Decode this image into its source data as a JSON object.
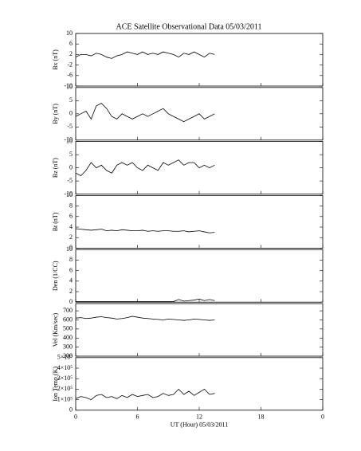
{
  "chart_data": [
    {
      "type": "line",
      "title": "ACE Satellite Observational Data   05/03/2011",
      "ylabel": "Bx (nT)",
      "x": [
        0,
        0.5,
        1,
        1.5,
        2,
        2.5,
        3,
        3.5,
        4,
        4.5,
        5,
        5.5,
        6,
        6.5,
        7,
        7.5,
        8,
        8.5,
        9,
        9.5,
        10,
        10.5,
        11,
        11.5,
        12,
        12.5,
        13,
        13.5
      ],
      "values": [
        1,
        2,
        2,
        1.5,
        2.5,
        2,
        1,
        0.5,
        1.5,
        2,
        3,
        2.5,
        2,
        3,
        2,
        2.5,
        2,
        3,
        2.5,
        2,
        1,
        2.5,
        2,
        3,
        2,
        1,
        2.5,
        2
      ],
      "color": "#000000",
      "xlim": [
        0,
        24
      ],
      "ylim": [
        -10,
        10
      ],
      "yticks": [
        -10,
        -6,
        -2,
        2,
        6,
        10
      ]
    },
    {
      "type": "line",
      "ylabel": "By (nT)",
      "x": [
        0,
        0.5,
        1,
        1.5,
        2,
        2.5,
        3,
        3.5,
        4,
        4.5,
        5,
        5.5,
        6,
        6.5,
        7,
        7.5,
        8,
        8.5,
        9,
        9.5,
        10,
        10.5,
        11,
        11.5,
        12,
        12.5,
        13,
        13.5
      ],
      "values": [
        -1,
        0,
        1,
        -2,
        3,
        4,
        2,
        -1,
        -2,
        0,
        -1,
        -2,
        -1,
        0,
        -1,
        0,
        1,
        2,
        0,
        -1,
        -2,
        -3,
        -2,
        -1,
        0,
        -2,
        -1,
        0
      ],
      "color": "#000000",
      "xlim": [
        0,
        24
      ],
      "ylim": [
        -10,
        10
      ],
      "yticks": [
        -10,
        -5,
        0,
        5,
        10
      ]
    },
    {
      "type": "line",
      "ylabel": "Bz (nT)",
      "x": [
        0,
        0.5,
        1,
        1.5,
        2,
        2.5,
        3,
        3.5,
        4,
        4.5,
        5,
        5.5,
        6,
        6.5,
        7,
        7.5,
        8,
        8.5,
        9,
        9.5,
        10,
        10.5,
        11,
        11.5,
        12,
        12.5,
        13,
        13.5
      ],
      "values": [
        -2,
        -3,
        -1,
        2,
        0,
        1,
        -1,
        -2,
        1,
        2,
        1,
        2,
        0,
        -1,
        1,
        0,
        -1,
        2,
        1,
        2,
        3,
        1,
        2,
        2,
        0,
        1,
        0,
        1
      ],
      "color": "#000000",
      "xlim": [
        0,
        24
      ],
      "ylim": [
        -10,
        10
      ],
      "yticks": [
        -10,
        -5,
        0,
        5,
        10
      ]
    },
    {
      "type": "line",
      "ylabel": "Bt (nT)",
      "x": [
        0,
        0.5,
        1,
        1.5,
        2,
        2.5,
        3,
        3.5,
        4,
        4.5,
        5,
        5.5,
        6,
        6.5,
        7,
        7.5,
        8,
        8.5,
        9,
        9.5,
        10,
        10.5,
        11,
        11.5,
        12,
        12.5,
        13,
        13.5
      ],
      "values": [
        3.7,
        3.6,
        3.5,
        3.4,
        3.5,
        3.6,
        3.3,
        3.4,
        3.3,
        3.5,
        3.4,
        3.3,
        3.3,
        3.4,
        3.2,
        3.3,
        3.2,
        3.3,
        3.3,
        3.2,
        3.2,
        3.3,
        3.1,
        3.2,
        3.3,
        3.1,
        2.9,
        3.0
      ],
      "color": "#000000",
      "xlim": [
        0,
        24
      ],
      "ylim": [
        0,
        10
      ],
      "yticks": [
        0,
        2,
        4,
        6,
        8,
        10
      ]
    },
    {
      "type": "line",
      "ylabel": "Den (1/CC)",
      "x": [
        0,
        0.5,
        1,
        1.5,
        2,
        2.5,
        3,
        3.5,
        4,
        4.5,
        5,
        5.5,
        6,
        6.5,
        7,
        7.5,
        8,
        8.5,
        9,
        9.5,
        10,
        10.5,
        11,
        11.5,
        12,
        12.5,
        13,
        13.5
      ],
      "values": [
        0.1,
        0.1,
        0.1,
        0.1,
        0.1,
        0.1,
        0.1,
        0.1,
        0.1,
        0.1,
        0.1,
        0.1,
        0.1,
        0.1,
        0.1,
        0.1,
        0.1,
        0.1,
        0.1,
        0.1,
        0.5,
        0.2,
        0.3,
        0.4,
        0.6,
        0.3,
        0.5,
        0.3
      ],
      "color": "#000000",
      "xlim": [
        0,
        24
      ],
      "ylim": [
        0,
        10
      ],
      "yticks": [
        0,
        2,
        4,
        6,
        8,
        10
      ]
    },
    {
      "type": "line",
      "ylabel": "Vel (Km/sec)",
      "x": [
        0,
        0.5,
        1,
        1.5,
        2,
        2.5,
        3,
        3.5,
        4,
        4.5,
        5,
        5.5,
        6,
        6.5,
        7,
        7.5,
        8,
        8.5,
        9,
        9.5,
        10,
        10.5,
        11,
        11.5,
        12,
        12.5,
        13,
        13.5
      ],
      "values": [
        620,
        625,
        615,
        620,
        630,
        635,
        625,
        620,
        610,
        615,
        625,
        640,
        630,
        620,
        615,
        610,
        605,
        600,
        610,
        605,
        600,
        595,
        600,
        610,
        605,
        600,
        595,
        600
      ],
      "color": "#000000",
      "xlim": [
        0,
        24
      ],
      "ylim": [
        200,
        780
      ],
      "yticks": [
        200,
        300,
        400,
        500,
        600,
        700
      ]
    },
    {
      "type": "line",
      "ylabel": "Ion Temp (K)",
      "xlabel": "UT (Hour)  05/03/2011",
      "x": [
        0,
        0.5,
        1,
        1.5,
        2,
        2.5,
        3,
        3.5,
        4,
        4.5,
        5,
        5.5,
        6,
        6.5,
        7,
        7.5,
        8,
        8.5,
        9,
        9.5,
        10,
        10.5,
        11,
        11.5,
        12,
        12.5,
        13,
        13.5
      ],
      "values": [
        110000,
        130000,
        120000,
        100000,
        140000,
        150000,
        120000,
        130000,
        110000,
        140000,
        120000,
        150000,
        130000,
        140000,
        150000,
        120000,
        130000,
        160000,
        140000,
        150000,
        200000,
        150000,
        180000,
        140000,
        170000,
        200000,
        150000,
        160000
      ],
      "color": "#000000",
      "xlim": [
        0,
        24
      ],
      "ylim": [
        0,
        500000
      ],
      "yticks": [
        0,
        {
          "value": 100000,
          "label": "1×10⁵"
        },
        {
          "value": 200000,
          "label": "2×10⁵"
        },
        {
          "value": 300000,
          "label": "3×10⁵"
        },
        {
          "value": 400000,
          "label": "4×10⁵"
        },
        {
          "value": 500000,
          "label": "5×10⁵"
        }
      ],
      "xticks": [
        0,
        6,
        12,
        18,
        {
          "value": 24,
          "label": "0"
        }
      ]
    }
  ]
}
